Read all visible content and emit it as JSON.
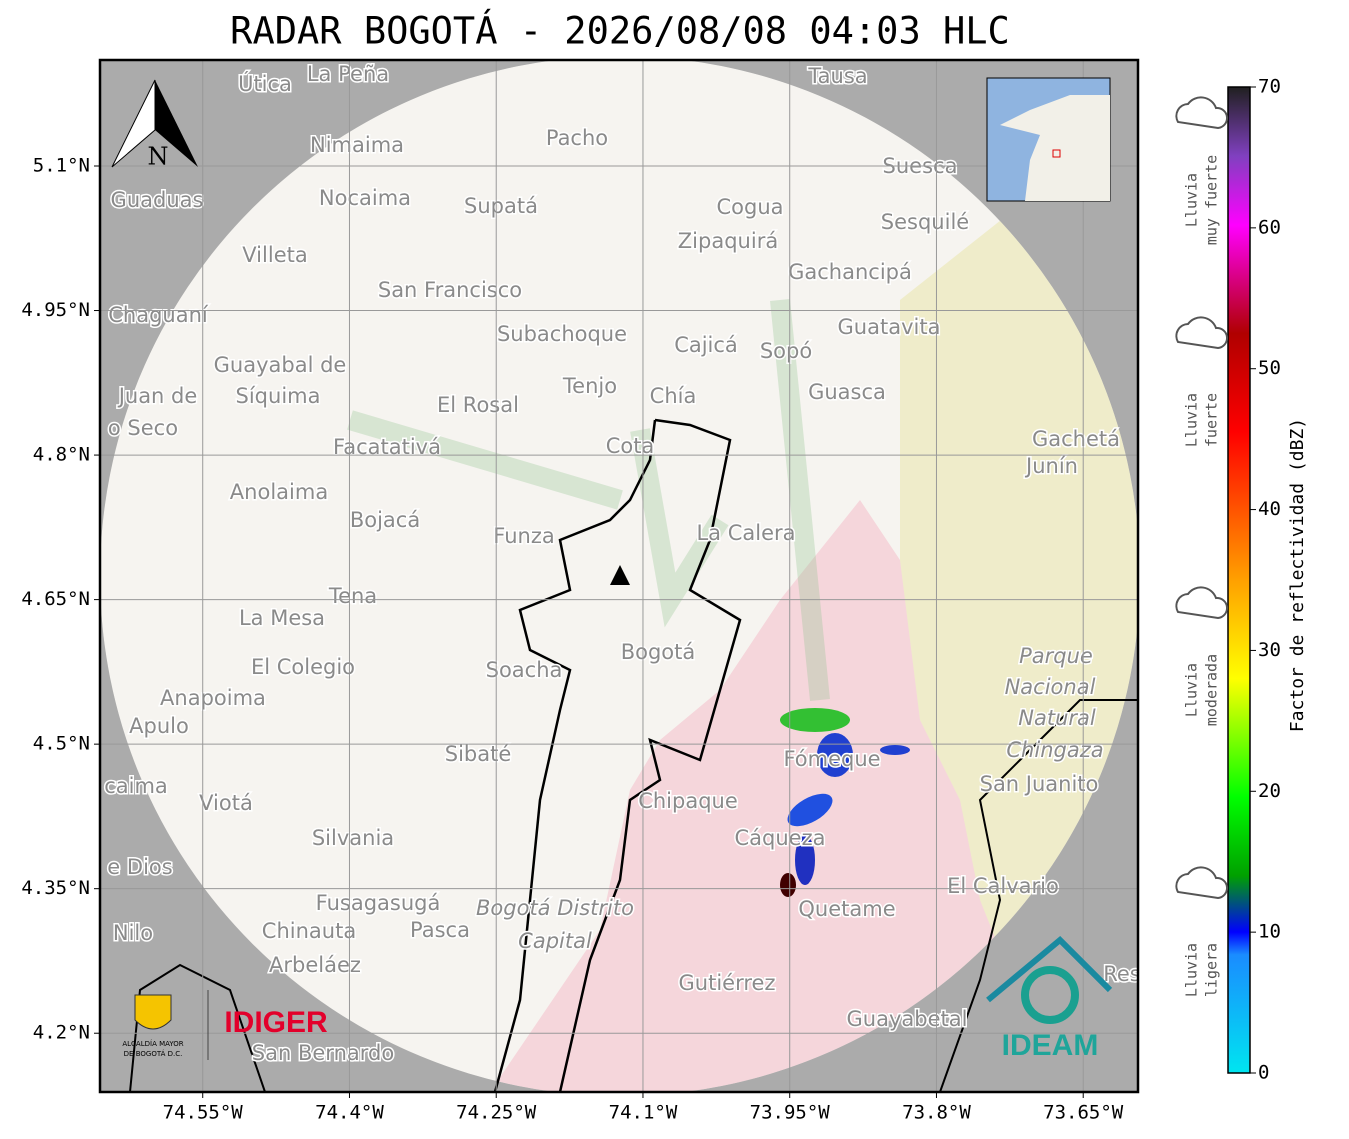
{
  "title": "RADAR BOGOTÁ - 2026/08/08 04:03 HLC",
  "map": {
    "xlim": [
      -74.655,
      -73.594
    ],
    "ylim": [
      4.139,
      5.21
    ],
    "xticks": [
      {
        "value": -74.55,
        "label": "74.55°W"
      },
      {
        "value": -74.4,
        "label": "74.4°W"
      },
      {
        "value": -74.25,
        "label": "74.25°W"
      },
      {
        "value": -74.1,
        "label": "74.1°W"
      },
      {
        "value": -73.95,
        "label": "73.95°W"
      },
      {
        "value": -73.8,
        "label": "73.8°W"
      },
      {
        "value": -73.65,
        "label": "73.65°W"
      }
    ],
    "yticks": [
      {
        "value": 5.1,
        "label": "5.1°N"
      },
      {
        "value": 4.95,
        "label": "4.95°N"
      },
      {
        "value": 4.8,
        "label": "4.8°N"
      },
      {
        "value": 4.65,
        "label": "4.65°N"
      },
      {
        "value": 4.5,
        "label": "4.5°N"
      },
      {
        "value": 4.35,
        "label": "4.35°N"
      },
      {
        "value": 4.2,
        "label": "4.2°N"
      }
    ],
    "north": "N",
    "places": [
      "La Peña",
      "Útica",
      "Tausa",
      "Pacho",
      "Nimaima",
      "Guaduas",
      "Nocaima",
      "Supatá",
      "Cogua",
      "Suesca",
      "Sesquilé",
      "Zipaquirá",
      "Villeta",
      "Gachancipá",
      "San Francisco",
      "Chaguaní",
      "Guatavita",
      "Subachoque",
      "Cajicá",
      "Sopó",
      "Guayabal de",
      "Síquima",
      "Juan de",
      "o Seco",
      "Tenjo",
      "Chía",
      "Guasca",
      "El Rosal",
      "Facatativá",
      "Cota",
      "Gachetá",
      "Junín",
      "Anolaima",
      "Bojacá",
      "Funza",
      "La Calera",
      "Tena",
      "La Mesa",
      "Bogotá",
      "El Colegio",
      "Soacha",
      "Parque",
      "Nacional",
      "Natural",
      "Chingaza",
      "San Juanito",
      "Anapoima",
      "Apulo",
      "Sibaté",
      "Fómeque",
      "caima",
      "Viotá",
      "Chipaque",
      "Cáqueza",
      "Silvania",
      "e Dios",
      "El Calvario",
      "Fusagasugá",
      "Bogotá Distrito",
      "Capital",
      "Quetame",
      "Nilo",
      "Chinauta",
      "Pasca",
      "Arbeláez",
      "Gutiérrez",
      "Res",
      "Guayabetal",
      "San Bernardo"
    ]
  },
  "colorbar": {
    "lim": [
      0,
      70
    ],
    "ticks": [
      0,
      10,
      20,
      30,
      40,
      50,
      60,
      70
    ],
    "label": "Factor de reflectividad (dBZ)",
    "categories": [
      [
        "Lluvia",
        "muy fuerte"
      ],
      [
        "Lluvia",
        "fuerte"
      ],
      [
        "Lluvia",
        "moderada"
      ],
      [
        "Lluvia",
        "ligera"
      ]
    ]
  },
  "logos": {
    "alcaldia": [
      "ALCALDÍA MAYOR",
      "DE BOGOTÁ D.C."
    ],
    "idiger": "IDIGER",
    "ideam": "IDEAM"
  }
}
